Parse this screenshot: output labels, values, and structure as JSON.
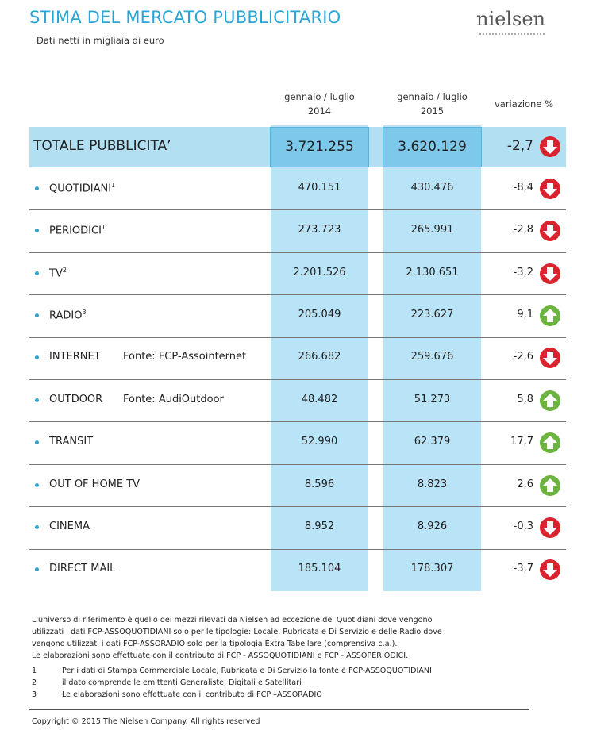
{
  "header": {
    "title": "STIMA DEL MERCATO PUBBLICITARIO",
    "subtitle": "Dati netti in migliaia di euro",
    "logo": "nielsen"
  },
  "table": {
    "columns": [
      {
        "period": "gennaio / luglio",
        "year": "2014"
      },
      {
        "period": "gennaio / luglio",
        "year": "2015"
      },
      {
        "period": "variazione %"
      }
    ],
    "total": {
      "label": "TOTALE PUBBLICITA’",
      "v2014": "3.721.255",
      "v2015": "3.620.129",
      "change": "-2,7",
      "direction": "down"
    },
    "rows": [
      {
        "label": "QUOTIDIANI",
        "sup": "1",
        "v2014": "470.151",
        "v2015": "430.476",
        "change": "-8,4",
        "direction": "down"
      },
      {
        "label": "PERIODICI",
        "sup": "1",
        "v2014": "273.723",
        "v2015": "265.991",
        "change": "-2,8",
        "direction": "down"
      },
      {
        "label": "TV",
        "sup": "2",
        "v2014": "2.201.526",
        "v2015": "2.130.651",
        "change": "-3,2",
        "direction": "down"
      },
      {
        "label": "RADIO",
        "sup": "3",
        "v2014": "205.049",
        "v2015": "223.627",
        "change": "9,1",
        "direction": "up"
      },
      {
        "label": "INTERNET",
        "source": "Fonte: FCP-Assointernet",
        "v2014": "266.682",
        "v2015": "259.676",
        "change": "-2,6",
        "direction": "down"
      },
      {
        "label": "OUTDOOR",
        "source": "Fonte: AudiOutdoor",
        "v2014": "48.482",
        "v2015": "51.273",
        "change": "5,8",
        "direction": "up"
      },
      {
        "label": "TRANSIT",
        "v2014": "52.990",
        "v2015": "62.379",
        "change": "17,7",
        "direction": "up"
      },
      {
        "label": "OUT OF HOME TV",
        "v2014": "8.596",
        "v2015": "8.823",
        "change": "2,6",
        "direction": "up"
      },
      {
        "label": "CINEMA",
        "v2014": "8.952",
        "v2015": "8.926",
        "change": "-0,3",
        "direction": "down"
      },
      {
        "label": "DIRECT MAIL",
        "v2014": "185.104",
        "v2015": "178.307",
        "change": "-3,7",
        "direction": "down"
      }
    ]
  },
  "footnotes": {
    "paragraph": "L'universo di riferimento è quello dei mezzi rilevati da Nielsen ad eccezione dei Quotidiani dove vengono utilizzati i dati FCP-ASSOQUOTIDIANI solo per le tipologie: Locale, Rubricata e Di Servizio e delle Radio dove vengono utilizzati i dati FCP-ASSORADIO solo per la tipologia Extra Tabellare (comprensiva c.a.).",
    "paragraph2": "Le elaborazioni sono effettuate con il contributo di FCP - ASSOQUOTIDIANI e FCP - ASSOPERIODICI.",
    "notes": [
      {
        "num": "1",
        "text": "Per i dati di Stampa Commerciale Locale, Rubricata e Di Servizio la fonte è  FCP-ASSOQUOTIDIANI"
      },
      {
        "num": "2",
        "text": "il dato comprende le emittenti Generaliste, Digitali e Satellitari"
      },
      {
        "num": "3",
        "text": "Le elaborazioni sono effettuate con il contributo di FCP –ASSORADIO"
      }
    ]
  },
  "copyright": "Copyright © 2015 The Nielsen Company. All rights reserved"
}
